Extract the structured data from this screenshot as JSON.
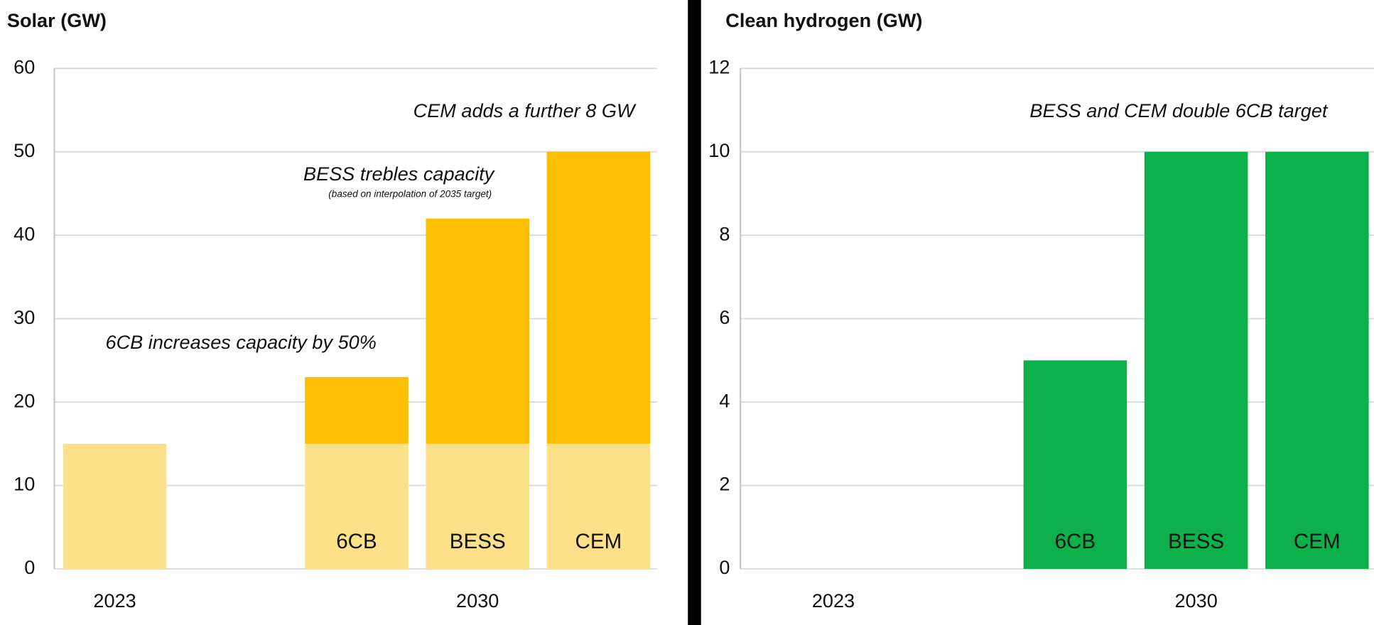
{
  "chart_data": [
    {
      "type": "bar",
      "stacked": true,
      "title": "Solar (GW)",
      "categories": [
        null,
        null,
        "6CB",
        "BESS",
        "CEM"
      ],
      "groups": [
        {
          "label": "2023",
          "members": 2
        },
        {
          "label": "2030",
          "members": 3
        }
      ],
      "series": [
        {
          "color": "#fde08a",
          "values": [
            15,
            null,
            15,
            15,
            15
          ]
        },
        {
          "color": "#fbbe00",
          "values": [
            null,
            null,
            8,
            27,
            35
          ]
        }
      ],
      "ylim": [
        0,
        60
      ],
      "yticks": [
        0,
        10,
        20,
        30,
        40,
        50,
        60
      ],
      "grid": true,
      "annotations": [
        "CEM adds a further 8 GW",
        "BESS trebles capacity",
        "(based on interpolation of 2035 target)",
        "6CB increases capacity by 50%"
      ]
    },
    {
      "type": "bar",
      "stacked": true,
      "title": "Clean hydrogen (GW)",
      "categories": [
        null,
        null,
        "6CB",
        "BESS",
        "CEM"
      ],
      "groups": [
        {
          "label": "2023",
          "members": 2
        },
        {
          "label": "2030",
          "members": 3
        }
      ],
      "series": [
        {
          "color": "#0db14b",
          "values": [
            null,
            null,
            5,
            10,
            10
          ]
        }
      ],
      "ylim": [
        0,
        12
      ],
      "yticks": [
        0,
        2,
        4,
        6,
        8,
        10,
        12
      ],
      "grid": true,
      "annotations": [
        "BESS and CEM double 6CB target"
      ]
    }
  ]
}
